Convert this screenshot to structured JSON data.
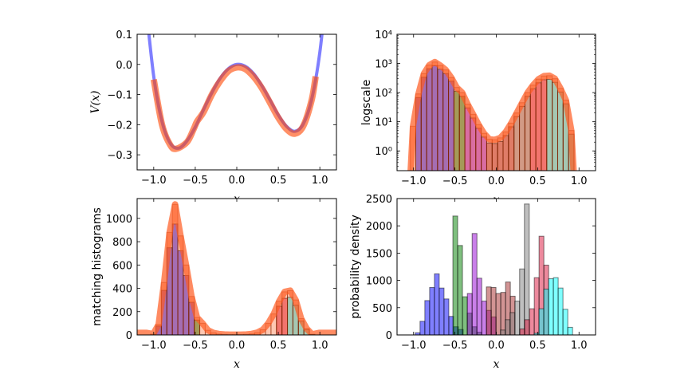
{
  "chart_data": [
    {
      "type": "line",
      "xlabel": "x",
      "ylabel": "V(x)",
      "xlim": [
        -1.2,
        1.2
      ],
      "ylim": [
        -0.35,
        0.1
      ],
      "xticks": [
        -1.0,
        -0.5,
        0.0,
        0.5,
        1.0
      ],
      "xtick_labels": [
        "−1.0",
        "−0.5",
        "0.0",
        "0.5",
        "1.0"
      ],
      "yticks": [
        -0.3,
        -0.2,
        -0.1,
        0.0,
        0.1
      ],
      "ytick_labels": [
        "−0.3",
        "−0.2",
        "−0.1",
        "0.0",
        "0.1"
      ],
      "grid": false,
      "series": [
        {
          "color": "#0000ff",
          "x": [
            -1.1,
            -1.0,
            -0.9,
            -0.8,
            -0.7,
            -0.6,
            -0.5,
            -0.4,
            -0.3,
            -0.2,
            -0.1,
            0.0,
            0.1,
            0.2,
            0.3,
            0.4,
            0.5,
            0.6,
            0.7,
            0.8,
            0.9,
            1.0,
            1.1
          ],
          "y": [
            0.21,
            -0.04,
            -0.19,
            -0.262,
            -0.278,
            -0.254,
            -0.208,
            -0.15,
            -0.094,
            -0.046,
            -0.014,
            0.0,
            -0.006,
            -0.03,
            -0.07,
            -0.118,
            -0.168,
            -0.206,
            -0.222,
            -0.198,
            -0.118,
            0.04,
            0.298
          ]
        },
        {
          "color": "#ff4500",
          "x": [
            -1.0,
            -0.9,
            -0.8,
            -0.73,
            -0.6,
            -0.52,
            -0.48,
            -0.4,
            -0.3,
            -0.2,
            -0.1,
            0.0,
            0.1,
            0.2,
            0.3,
            0.4,
            0.5,
            0.6,
            0.7,
            0.8,
            0.9,
            0.95
          ],
          "y": [
            -0.05,
            -0.2,
            -0.268,
            -0.28,
            -0.258,
            -0.215,
            -0.19,
            -0.158,
            -0.1,
            -0.055,
            -0.022,
            -0.01,
            -0.015,
            -0.04,
            -0.078,
            -0.127,
            -0.177,
            -0.215,
            -0.23,
            -0.205,
            -0.12,
            -0.04
          ]
        }
      ]
    },
    {
      "type": "bar",
      "xlabel": "x",
      "ylabel": "logscale",
      "yscale": "log",
      "xlim": [
        -1.2,
        1.2
      ],
      "ylim": [
        0.21,
        10000
      ],
      "xticks": [
        -1.0,
        -0.5,
        0.0,
        0.5,
        1.0
      ],
      "xtick_labels": [
        "−1.0",
        "−0.5",
        "0.0",
        "0.5",
        "1.0"
      ],
      "yticks": [
        1,
        10,
        100,
        1000,
        10000
      ],
      "ytick_labels": [
        "10⁰",
        "10¹",
        "10²",
        "10³",
        "10⁴"
      ],
      "grid": false,
      "color": "#ff4500",
      "bin_start": -1.04,
      "bin_width": 0.066,
      "values": [
        7,
        90,
        450,
        880,
        1120,
        850,
        600,
        330,
        150,
        100,
        40,
        18,
        8,
        4,
        2.5,
        2.4,
        2.8,
        4.5,
        9,
        20,
        45,
        100,
        180,
        290,
        370,
        380,
        300,
        140,
        55,
        5
      ]
    },
    {
      "type": "bar",
      "xlabel": "x",
      "ylabel": "matching histograms",
      "xlim": [
        -1.2,
        1.2
      ],
      "ylim": [
        0,
        1170
      ],
      "xticks": [
        -1.0,
        -0.5,
        0.0,
        0.5,
        1.0
      ],
      "xtick_labels": [
        "−1.0",
        "−0.5",
        "0.0",
        "0.5",
        "1.0"
      ],
      "yticks": [
        0,
        200,
        400,
        600,
        800,
        1000
      ],
      "ytick_labels": [
        "0",
        "200",
        "400",
        "600",
        "800",
        "1000"
      ],
      "grid": false,
      "color": "#ff4500",
      "bin_start": -1.04,
      "bin_width": 0.066,
      "values": [
        7,
        90,
        450,
        880,
        1120,
        850,
        600,
        330,
        150,
        100,
        40,
        18,
        8,
        4,
        2.5,
        2.4,
        2.8,
        4.5,
        9,
        20,
        45,
        100,
        180,
        290,
        370,
        380,
        300,
        140,
        55,
        5
      ]
    },
    {
      "type": "bar",
      "xlabel": "x",
      "ylabel": "probability density",
      "xlim": [
        -1.2,
        1.2
      ],
      "ylim": [
        0,
        2500
      ],
      "xticks": [
        -1.0,
        -0.5,
        0.0,
        0.5,
        1.0
      ],
      "xtick_labels": [
        "−1.0",
        "−0.5",
        "0.0",
        "0.5",
        "1.0"
      ],
      "yticks": [
        0,
        500,
        1000,
        1500,
        2000,
        2500
      ],
      "ytick_labels": [
        "0",
        "500",
        "1000",
        "1500",
        "2000",
        "2500"
      ],
      "grid": false,
      "series": [
        {
          "color": "#0000ff",
          "bin_start": -0.98,
          "bin_width": 0.058,
          "values": [
            40,
            250,
            630,
            870,
            1120,
            860,
            660,
            340,
            150,
            100
          ]
        },
        {
          "color": "#008000",
          "bin_start": -0.525,
          "bin_width": 0.058,
          "values": [
            2180,
            1640,
            700,
            400,
            150,
            50
          ]
        },
        {
          "color": "#9400d3",
          "bin_start": -0.35,
          "bin_width": 0.058,
          "values": [
            760,
            1860,
            1040,
            620,
            450,
            330
          ]
        },
        {
          "color": "#a52a2a",
          "bin_start": -0.12,
          "bin_width": 0.058,
          "values": [
            880,
            870,
            760,
            780,
            970,
            710
          ]
        },
        {
          "color": "#808080",
          "bin_start": 0.05,
          "bin_width": 0.058,
          "values": [
            90,
            280,
            410,
            620,
            1210,
            2400
          ]
        },
        {
          "color": "#dc143c",
          "bin_start": 0.285,
          "bin_width": 0.058,
          "values": [
            110,
            280,
            480,
            1050,
            1810,
            1280
          ]
        },
        {
          "color": "#00ffff",
          "bin_start": 0.458,
          "bin_width": 0.058,
          "values": [
            30,
            480,
            840,
            1030,
            1050,
            860,
            470,
            140
          ]
        }
      ]
    }
  ]
}
